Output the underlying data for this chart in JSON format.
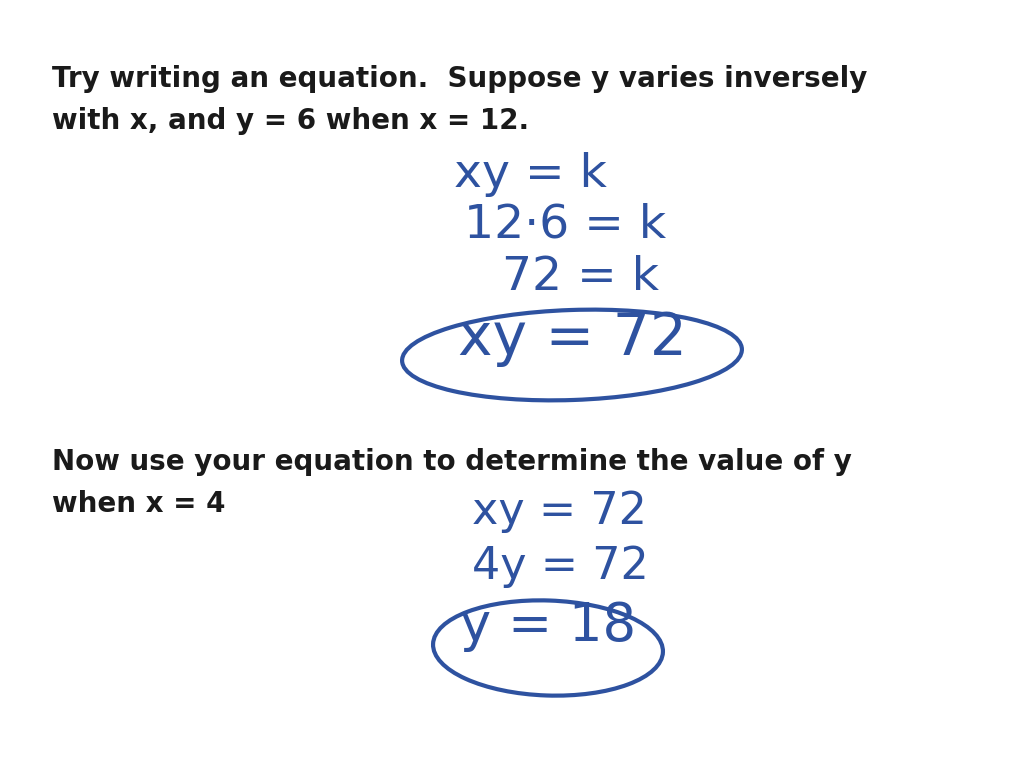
{
  "bg_color": "#ffffff",
  "black": "#1a1a1a",
  "blue": "#2e52a0",
  "line1": "Try writing an equation.  Suppose y varies inversely",
  "line2": "with x, and y = 6 when x = 12.",
  "step1": "xy = k",
  "step2": "12·6 = k",
  "step3": "72 = k",
  "step4": "xy = 72",
  "line3": "Now use your equation to determine the value of y",
  "line4": "when x = 4",
  "step5": "xy = 72",
  "step6": "4y = 72",
  "step7": "y = 18",
  "figsize": [
    10.24,
    7.68
  ],
  "dpi": 100,
  "black_fontsize": 20,
  "blue_fontsize_sm": 28,
  "blue_fontsize_lg": 34
}
